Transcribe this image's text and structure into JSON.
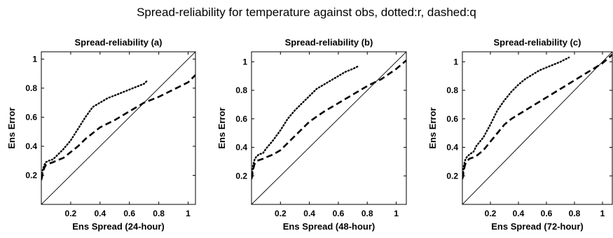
{
  "figure": {
    "suptitle": "Spread-reliability for temperature against obs, dotted:r, dashed:q"
  },
  "chart_data": [
    {
      "type": "line",
      "title": "Spread-reliability (a)",
      "xlabel": "Ens Spread (24-hour)",
      "ylabel": "Ens Error",
      "xlim": [
        0,
        1.05
      ],
      "ylim": [
        0,
        1.05
      ],
      "xticks": [
        0.2,
        0.4,
        0.6,
        0.8,
        1
      ],
      "yticks": [
        0.2,
        0.4,
        0.6,
        0.8,
        1
      ],
      "xtick_labels": [
        "0.2",
        "0.4",
        "0.6",
        "0.8",
        "1"
      ],
      "ytick_labels": [
        "0.2",
        "0.4",
        "0.6",
        "0.8",
        "1"
      ],
      "grid": false,
      "series": [
        {
          "style": "solid",
          "color": "#000000",
          "x": [
            0,
            1.05
          ],
          "y": [
            0,
            1.05
          ]
        },
        {
          "style": "dotted",
          "color": "#000000",
          "x": [
            0.0,
            0.005,
            0.01,
            0.02,
            0.03,
            0.05,
            0.08,
            0.1,
            0.15,
            0.2,
            0.25,
            0.3,
            0.35,
            0.4,
            0.45,
            0.5,
            0.55,
            0.6,
            0.65,
            0.7,
            0.72
          ],
          "y": [
            0.17,
            0.2,
            0.24,
            0.27,
            0.29,
            0.3,
            0.31,
            0.33,
            0.38,
            0.44,
            0.52,
            0.6,
            0.67,
            0.7,
            0.73,
            0.75,
            0.77,
            0.79,
            0.81,
            0.83,
            0.85
          ]
        },
        {
          "style": "dashed",
          "color": "#000000",
          "x": [
            0.0,
            0.005,
            0.01,
            0.02,
            0.03,
            0.05,
            0.08,
            0.1,
            0.15,
            0.2,
            0.25,
            0.3,
            0.35,
            0.4,
            0.5,
            0.6,
            0.7,
            0.8,
            0.9,
            1.0,
            1.05
          ],
          "y": [
            0.17,
            0.19,
            0.22,
            0.25,
            0.27,
            0.28,
            0.29,
            0.3,
            0.32,
            0.36,
            0.4,
            0.45,
            0.49,
            0.53,
            0.58,
            0.64,
            0.7,
            0.74,
            0.79,
            0.84,
            0.89
          ]
        }
      ]
    },
    {
      "type": "line",
      "title": "Spread-reliability (b)",
      "xlabel": "Ens Spread (48-hour)",
      "ylabel": "Ens Error",
      "xlim": [
        0,
        1.07
      ],
      "ylim": [
        0,
        1.07
      ],
      "xticks": [
        0.2,
        0.4,
        0.6,
        0.8,
        1
      ],
      "yticks": [
        0.2,
        0.4,
        0.6,
        0.8,
        1
      ],
      "xtick_labels": [
        "0.2",
        "0.4",
        "0.6",
        "0.8",
        "1"
      ],
      "ytick_labels": [
        "0.2",
        "0.4",
        "0.6",
        "0.8",
        "1"
      ],
      "grid": false,
      "series": [
        {
          "style": "solid",
          "color": "#000000",
          "x": [
            0,
            1.07
          ],
          "y": [
            0,
            1.07
          ]
        },
        {
          "style": "dotted",
          "color": "#000000",
          "x": [
            0.0,
            0.005,
            0.01,
            0.02,
            0.03,
            0.05,
            0.08,
            0.1,
            0.15,
            0.2,
            0.25,
            0.3,
            0.35,
            0.4,
            0.45,
            0.5,
            0.55,
            0.6,
            0.65,
            0.7,
            0.74
          ],
          "y": [
            0.18,
            0.22,
            0.27,
            0.31,
            0.33,
            0.35,
            0.36,
            0.39,
            0.45,
            0.52,
            0.6,
            0.66,
            0.71,
            0.76,
            0.81,
            0.84,
            0.87,
            0.9,
            0.93,
            0.95,
            0.97
          ]
        },
        {
          "style": "dashed",
          "color": "#000000",
          "x": [
            0.0,
            0.005,
            0.01,
            0.02,
            0.03,
            0.05,
            0.08,
            0.1,
            0.15,
            0.2,
            0.25,
            0.3,
            0.35,
            0.4,
            0.5,
            0.6,
            0.7,
            0.8,
            0.9,
            1.0,
            1.07
          ],
          "y": [
            0.18,
            0.2,
            0.24,
            0.28,
            0.3,
            0.31,
            0.32,
            0.33,
            0.35,
            0.38,
            0.43,
            0.48,
            0.53,
            0.58,
            0.65,
            0.71,
            0.77,
            0.83,
            0.88,
            0.95,
            1.01
          ]
        }
      ]
    },
    {
      "type": "line",
      "title": "Spread-reliability (c)",
      "xlabel": "Ens Spread (72-hour)",
      "ylabel": "Ens Error",
      "xlim": [
        0,
        1.07
      ],
      "ylim": [
        0,
        1.07
      ],
      "xticks": [
        0.2,
        0.4,
        0.6,
        0.8,
        1
      ],
      "yticks": [
        0.2,
        0.4,
        0.6,
        0.8,
        1
      ],
      "xtick_labels": [
        "0.2",
        "0.4",
        "0.6",
        "0.8",
        "1"
      ],
      "ytick_labels": [
        "0.2",
        "0.4",
        "0.6",
        "0.8",
        "1"
      ],
      "grid": false,
      "series": [
        {
          "style": "solid",
          "color": "#000000",
          "x": [
            0,
            1.07
          ],
          "y": [
            0,
            1.07
          ]
        },
        {
          "style": "dotted",
          "color": "#000000",
          "x": [
            0.0,
            0.005,
            0.01,
            0.02,
            0.03,
            0.05,
            0.08,
            0.1,
            0.15,
            0.2,
            0.25,
            0.3,
            0.35,
            0.4,
            0.45,
            0.5,
            0.55,
            0.6,
            0.65,
            0.7,
            0.76
          ],
          "y": [
            0.18,
            0.22,
            0.27,
            0.31,
            0.33,
            0.35,
            0.37,
            0.41,
            0.47,
            0.56,
            0.66,
            0.73,
            0.79,
            0.84,
            0.88,
            0.91,
            0.94,
            0.96,
            0.98,
            1.0,
            1.03
          ]
        },
        {
          "style": "dashed",
          "color": "#000000",
          "x": [
            0.0,
            0.005,
            0.01,
            0.02,
            0.03,
            0.05,
            0.08,
            0.1,
            0.15,
            0.2,
            0.25,
            0.3,
            0.35,
            0.4,
            0.5,
            0.6,
            0.7,
            0.8,
            0.9,
            1.0,
            1.07
          ],
          "y": [
            0.18,
            0.2,
            0.24,
            0.28,
            0.3,
            0.32,
            0.33,
            0.34,
            0.38,
            0.44,
            0.5,
            0.56,
            0.6,
            0.63,
            0.69,
            0.75,
            0.81,
            0.87,
            0.93,
            0.99,
            1.05
          ]
        }
      ]
    }
  ]
}
